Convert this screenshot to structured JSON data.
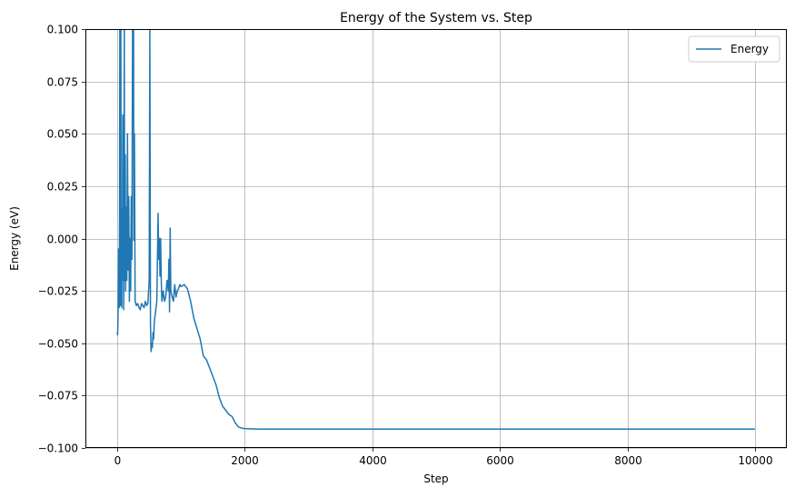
{
  "chart_data": {
    "type": "line",
    "title": "Energy of the System vs. Step",
    "xlabel": "Step",
    "ylabel": "Energy (eV)",
    "xlim": [
      -500,
      10500
    ],
    "ylim": [
      -0.1,
      0.1
    ],
    "x_ticks": [
      0,
      2000,
      4000,
      6000,
      8000,
      10000
    ],
    "x_tick_labels": [
      "0",
      "2000",
      "4000",
      "6000",
      "8000",
      "10000"
    ],
    "y_ticks": [
      -0.1,
      -0.075,
      -0.05,
      -0.025,
      0.0,
      0.025,
      0.05,
      0.075,
      0.1
    ],
    "y_tick_labels": [
      "−0.100",
      "−0.075",
      "−0.050",
      "−0.025",
      "0.000",
      "0.025",
      "0.050",
      "0.075",
      "0.100"
    ],
    "grid": true,
    "legend_position": "top-right",
    "series": [
      {
        "name": "Energy",
        "color": "#1f77b4",
        "x": [
          0,
          5,
          10,
          15,
          20,
          25,
          30,
          35,
          40,
          45,
          50,
          55,
          60,
          65,
          70,
          75,
          80,
          85,
          90,
          95,
          100,
          105,
          110,
          115,
          120,
          125,
          130,
          135,
          140,
          145,
          150,
          160,
          170,
          180,
          190,
          200,
          210,
          220,
          230,
          240,
          250,
          255,
          260,
          265,
          270,
          280,
          300,
          320,
          340,
          360,
          380,
          400,
          420,
          440,
          460,
          480,
          500,
          510,
          520,
          530,
          540,
          550,
          560,
          570,
          580,
          600,
          620,
          640,
          650,
          660,
          670,
          680,
          690,
          700,
          720,
          740,
          760,
          780,
          800,
          810,
          820,
          830,
          840,
          860,
          880,
          900,
          920,
          940,
          960,
          980,
          1000,
          1050,
          1100,
          1150,
          1200,
          1250,
          1300,
          1350,
          1400,
          1450,
          1500,
          1550,
          1600,
          1650,
          1700,
          1750,
          1800,
          1850,
          1900,
          1950,
          2000,
          2100,
          2200,
          2300,
          2500,
          3000,
          4000,
          5000,
          6000,
          7000,
          8000,
          9000,
          10000
        ],
        "y": [
          -0.045,
          -0.046,
          -0.04,
          -0.03,
          -0.005,
          -0.02,
          -0.033,
          -0.01,
          0.1,
          -0.025,
          -0.032,
          0.1,
          -0.03,
          0.0,
          -0.033,
          0.014,
          -0.02,
          0.059,
          -0.01,
          0.045,
          -0.034,
          0.005,
          0.1,
          -0.02,
          0.01,
          0.04,
          -0.025,
          0.002,
          0.015,
          -0.01,
          -0.02,
          0.05,
          -0.015,
          0.02,
          -0.03,
          0.0,
          -0.025,
          0.02,
          -0.01,
          0.1,
          0.065,
          0.1,
          -0.001,
          0.032,
          0.05,
          -0.03,
          -0.032,
          -0.031,
          -0.033,
          -0.034,
          -0.031,
          -0.032,
          -0.033,
          -0.03,
          -0.032,
          -0.031,
          -0.02,
          0.1,
          -0.04,
          -0.054,
          -0.05,
          -0.052,
          -0.045,
          -0.048,
          -0.04,
          -0.035,
          -0.03,
          0.012,
          -0.01,
          0.0,
          -0.018,
          0.0,
          -0.02,
          -0.03,
          -0.025,
          -0.03,
          -0.028,
          -0.02,
          -0.025,
          -0.01,
          -0.035,
          0.005,
          -0.025,
          -0.028,
          -0.03,
          -0.022,
          -0.028,
          -0.025,
          -0.024,
          -0.022,
          -0.023,
          -0.022,
          -0.024,
          -0.03,
          -0.038,
          -0.043,
          -0.048,
          -0.056,
          -0.058,
          -0.062,
          -0.066,
          -0.07,
          -0.076,
          -0.08,
          -0.082,
          -0.084,
          -0.085,
          -0.088,
          -0.09,
          -0.0905,
          -0.0908,
          -0.0909,
          -0.091,
          -0.091,
          -0.091,
          -0.091,
          -0.091,
          -0.091,
          -0.091,
          -0.091,
          -0.091,
          -0.091,
          -0.091
        ]
      }
    ]
  }
}
